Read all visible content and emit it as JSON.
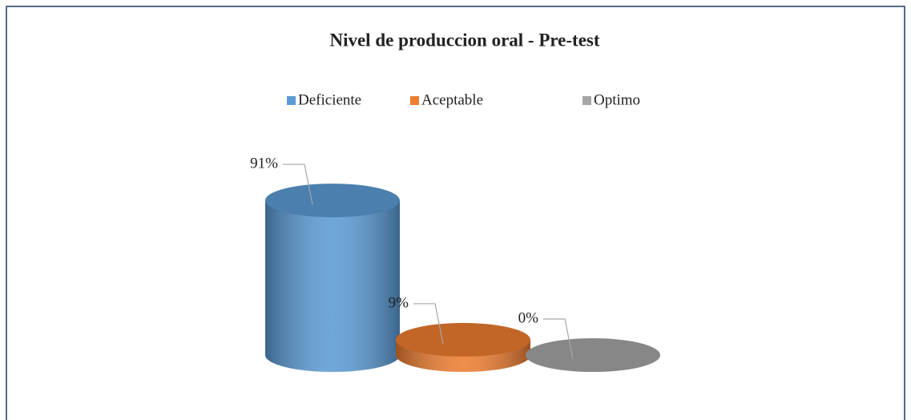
{
  "chart_data": {
    "type": "cylinder",
    "title": "Nivel de produccion oral - Pre-test",
    "categories": [
      "Deficiente",
      "Aceptable",
      "Optimo"
    ],
    "values": [
      91,
      9,
      0
    ],
    "value_labels": [
      "91%",
      "9%",
      "0%"
    ],
    "colors": [
      "#5b9bd5",
      "#ed7d31",
      "#a5a5a5"
    ],
    "legend": "top"
  }
}
